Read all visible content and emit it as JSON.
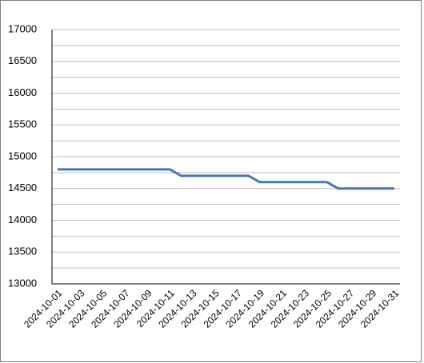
{
  "chart_data": {
    "type": "line",
    "categories": [
      "2024-10-01",
      null,
      "2024-10-03",
      null,
      "2024-10-05",
      null,
      "2024-10-07",
      null,
      "2024-10-09",
      null,
      "2024-10-11",
      null,
      "2024-10-13",
      null,
      "2024-10-15",
      null,
      "2024-10-17",
      null,
      "2024-10-19",
      null,
      "2024-10-21",
      null,
      "2024-10-23",
      null,
      "2024-10-25",
      null,
      "2024-10-27",
      null,
      "2024-10-29",
      null,
      "2024-10-31"
    ],
    "series": [
      {
        "color": "#4a76b8",
        "values": [
          14800,
          14800,
          14800,
          14800,
          14800,
          14800,
          14800,
          14800,
          14800,
          14800,
          14800,
          14700,
          14700,
          14700,
          14700,
          14700,
          14700,
          14700,
          14600,
          14600,
          14600,
          14600,
          14600,
          14600,
          14600,
          14500,
          14500,
          14500,
          14500,
          14500,
          14500
        ]
      }
    ],
    "ylim": [
      13000,
      17000
    ],
    "yticks": [
      13000,
      13500,
      14000,
      14500,
      15000,
      15500,
      16000,
      16500,
      17000
    ],
    "minor_yticks": [
      13250,
      13750,
      14250,
      14750,
      15250,
      15750,
      16250,
      16750
    ],
    "grid": true
  }
}
